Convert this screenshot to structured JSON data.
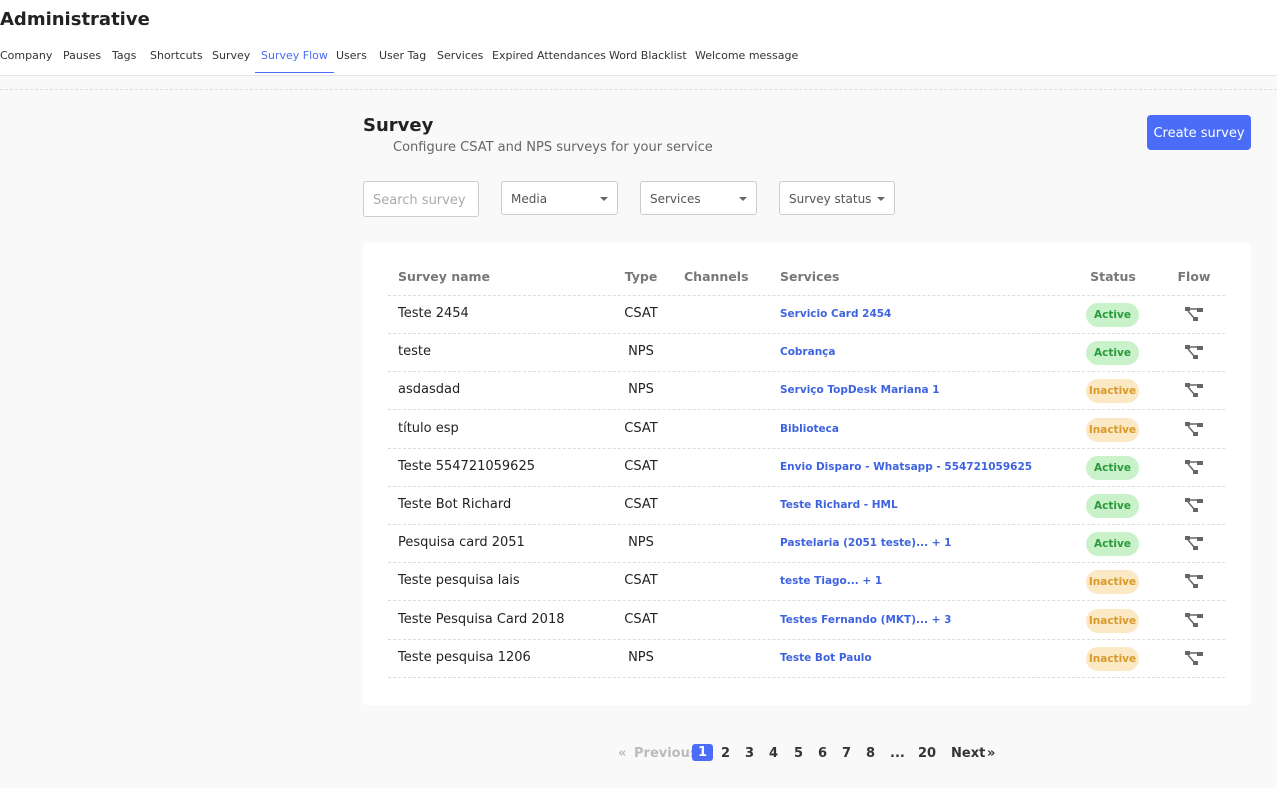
{
  "header": {
    "title": "Administrative"
  },
  "tabs": {
    "items": [
      "Company",
      "Pauses",
      "Tags",
      "Shortcuts",
      "Survey",
      "Survey Flow",
      "Users",
      "User Tag",
      "Services",
      "Expired Attendances",
      "Word Blacklist",
      "Welcome message"
    ],
    "active": 5
  },
  "page": {
    "title": "Survey",
    "subtitle": "Configure CSAT and NPS surveys for your service",
    "create_button": "Create survey"
  },
  "filters": {
    "search_placeholder": "Search survey",
    "selects": [
      "Media",
      "Services",
      "Survey status"
    ]
  },
  "table": {
    "columns": [
      "Survey name",
      "Type",
      "Channels",
      "Services",
      "Status",
      "Flow"
    ],
    "rows": [
      {
        "name": "Teste 2454",
        "type": "CSAT",
        "services": "Servicio Card 2454",
        "status": "Active",
        "status_color": "green"
      },
      {
        "name": "teste",
        "type": "NPS",
        "services": "Cobrança",
        "status": "Active",
        "status_color": "green"
      },
      {
        "name": "asdasdad",
        "type": "NPS",
        "services": "Serviço TopDesk Mariana 1",
        "status": "Inactive",
        "status_color": "amber"
      },
      {
        "name": "título esp",
        "type": "CSAT",
        "services": "Biblioteca",
        "status": "Inactive",
        "status_color": "amber"
      },
      {
        "name": "Teste 554721059625",
        "type": "CSAT",
        "services": "Envio Disparo - Whatsapp - 554721059625",
        "status": "Active",
        "status_color": "green"
      },
      {
        "name": "Teste Bot Richard",
        "type": "CSAT",
        "services": "Teste Richard - HML",
        "status": "Active",
        "status_color": "green"
      },
      {
        "name": "Pesquisa card 2051",
        "type": "NPS",
        "services": "Pastelaria (2051 teste)... + 1",
        "status": "Active",
        "status_color": "green"
      },
      {
        "name": "Teste pesquisa lais",
        "type": "CSAT",
        "services": "teste Tiago... + 1",
        "status": "Inactive",
        "status_color": "amber"
      },
      {
        "name": "Teste Pesquisa Card 2018",
        "type": "CSAT",
        "services": "Testes Fernando (MKT)... + 3",
        "status": "Inactive",
        "status_color": "amber"
      },
      {
        "name": "Teste pesquisa 1206",
        "type": "NPS",
        "services": "Teste Bot Paulo",
        "status": "Inactive",
        "status_color": "amber"
      }
    ]
  },
  "pagination": {
    "prev_icon": "«",
    "previous": "Previous",
    "pages": [
      "1",
      "2",
      "3",
      "4",
      "5",
      "6",
      "7",
      "8",
      "...",
      "20"
    ],
    "current": 0,
    "next": "Next",
    "next_icon": "»"
  }
}
